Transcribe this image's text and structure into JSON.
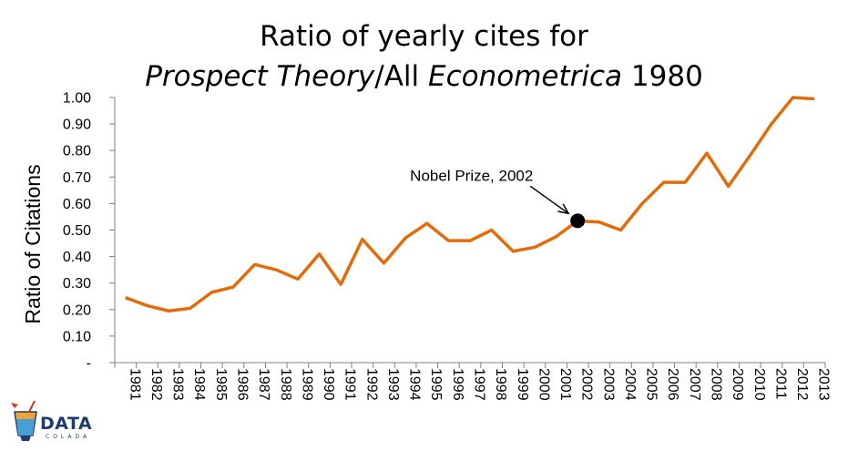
{
  "title": {
    "line1": "Ratio of yearly cites for",
    "line2_italic_a": "Prospect Theory",
    "line2_plain_b": "/All ",
    "line2_italic_c": "Econometrica",
    "line2_plain_d": " 1980"
  },
  "logo": {
    "text": "DATA",
    "subtext": "COLADA"
  },
  "colors": {
    "line": "#E36C0A",
    "axis": "#808080",
    "marker": "#000000"
  },
  "chart_data": {
    "type": "line",
    "title": "Ratio of yearly cites for Prospect Theory/All Econometrica 1980",
    "xlabel": "",
    "ylabel": "Ratio of Citations",
    "ylim": [
      0,
      1.0
    ],
    "yticks": [
      "-",
      "0.10",
      "0.20",
      "0.30",
      "0.40",
      "0.50",
      "0.60",
      "0.70",
      "0.80",
      "0.90",
      "1.00"
    ],
    "ytick_values": [
      0,
      0.1,
      0.2,
      0.3,
      0.4,
      0.5,
      0.6,
      0.7,
      0.8,
      0.9,
      1.0
    ],
    "categories": [
      "1981",
      "1982",
      "1983",
      "1984",
      "1985",
      "1986",
      "1987",
      "1988",
      "1989",
      "1990",
      "1991",
      "1992",
      "1993",
      "1994",
      "1995",
      "1996",
      "1997",
      "1998",
      "1999",
      "2000",
      "2001",
      "2002",
      "2003",
      "2004",
      "2005",
      "2006",
      "2007",
      "2008",
      "2009",
      "2010",
      "2011",
      "2012",
      "2013"
    ],
    "series": [
      {
        "values": [
          0.245,
          0.215,
          0.195,
          0.205,
          0.265,
          0.285,
          0.37,
          0.35,
          0.315,
          0.41,
          0.295,
          0.465,
          0.375,
          0.47,
          0.525,
          0.46,
          0.46,
          0.5,
          0.42,
          0.435,
          0.475,
          0.535,
          0.53,
          0.5,
          0.6,
          0.68,
          0.68,
          0.79,
          0.665,
          0.78,
          0.9,
          1.0,
          0.995
        ]
      }
    ],
    "annotations": [
      {
        "text": "Nobel Prize, 2002",
        "x": "2002",
        "y": 0.535
      }
    ],
    "grid": false,
    "legend": "none"
  }
}
